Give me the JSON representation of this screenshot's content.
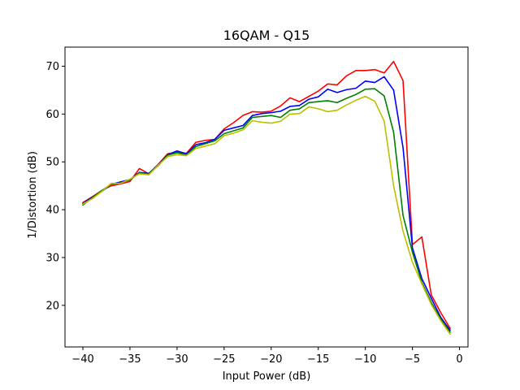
{
  "chart_data": {
    "type": "line",
    "title": "16QAM - Q15",
    "xlabel": "Input Power (dB)",
    "ylabel": "1/Distortion (dB)",
    "xlim": [
      -41.9,
      0.9
    ],
    "ylim": [
      11.3,
      74.0
    ],
    "xticks": [
      -40,
      -35,
      -30,
      -25,
      -20,
      -15,
      -10,
      -5,
      0
    ],
    "yticks": [
      20,
      30,
      40,
      50,
      60,
      70
    ],
    "grid": false,
    "legend": "none",
    "x": [
      -40,
      -39,
      -38,
      -37,
      -36,
      -35,
      -34,
      -33,
      -32,
      -31,
      -30,
      -29,
      -28,
      -27,
      -26,
      -25,
      -24,
      -23,
      -22,
      -21,
      -20,
      -19,
      -18,
      -17,
      -16,
      -15,
      -14,
      -13,
      -12,
      -11,
      -10,
      -9,
      -8,
      -7,
      -6,
      -5,
      -4,
      -3,
      -2,
      -1
    ],
    "series": [
      {
        "color": "#ff0000",
        "values": [
          41.5,
          42.7,
          44.0,
          45.0,
          45.4,
          45.9,
          48.6,
          47.5,
          49.5,
          51.7,
          52.0,
          51.8,
          54.1,
          54.5,
          54.7,
          56.9,
          58.2,
          59.7,
          60.5,
          60.4,
          60.6,
          61.7,
          63.4,
          62.6,
          63.7,
          64.8,
          66.3,
          66.1,
          68.0,
          69.1,
          69.1,
          69.3,
          68.6,
          71.0,
          67.0,
          32.7,
          34.3,
          22.2,
          18.5,
          15.2
        ]
      },
      {
        "color": "#0000ff",
        "values": [
          41.3,
          42.6,
          43.8,
          45.3,
          45.8,
          46.3,
          47.8,
          47.6,
          49.3,
          51.5,
          52.3,
          51.7,
          53.6,
          54.0,
          54.7,
          56.6,
          57.1,
          57.6,
          59.7,
          60.1,
          60.3,
          60.6,
          61.6,
          61.8,
          63.1,
          63.6,
          65.2,
          64.5,
          65.1,
          65.4,
          66.9,
          66.6,
          67.8,
          65.0,
          53.0,
          32.0,
          25.6,
          21.5,
          17.5,
          14.8
        ]
      },
      {
        "color": "#008000",
        "values": [
          41.0,
          42.5,
          44.0,
          45.3,
          45.6,
          46.2,
          47.7,
          47.5,
          49.2,
          51.4,
          51.9,
          51.5,
          53.2,
          53.8,
          54.4,
          55.9,
          56.5,
          57.1,
          59.3,
          59.5,
          59.7,
          59.3,
          60.8,
          61.1,
          62.4,
          62.6,
          62.8,
          62.4,
          63.3,
          64.1,
          65.2,
          65.3,
          63.8,
          56.2,
          38.8,
          31.1,
          24.8,
          20.6,
          17.1,
          14.4
        ]
      },
      {
        "color": "#bfbf00",
        "values": [
          41.2,
          42.3,
          43.8,
          45.5,
          45.5,
          46.4,
          47.5,
          47.3,
          49.3,
          51.1,
          51.5,
          51.3,
          52.8,
          53.3,
          53.8,
          55.5,
          56.0,
          56.7,
          58.6,
          58.3,
          58.1,
          58.5,
          60.0,
          60.1,
          61.5,
          61.1,
          60.5,
          60.8,
          61.9,
          62.9,
          63.7,
          62.7,
          58.5,
          45.0,
          35.5,
          29.0,
          24.5,
          20.2,
          16.8,
          14.0
        ]
      }
    ]
  }
}
